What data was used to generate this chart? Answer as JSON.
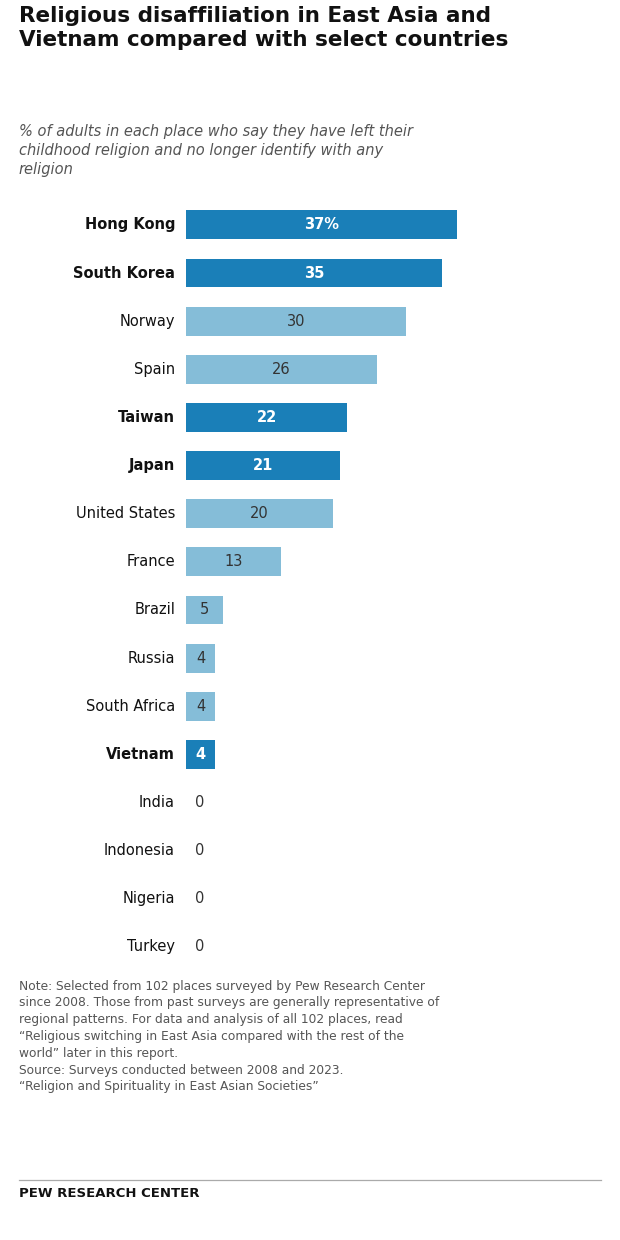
{
  "title": "Religious disaffiliation in East Asia and\nVietnam compared with select countries",
  "subtitle": "% of adults in each place who say they have left their\nchildhood religion and no longer identify with any\nreligion",
  "categories": [
    "Hong Kong",
    "South Korea",
    "Norway",
    "Spain",
    "Taiwan",
    "Japan",
    "United States",
    "France",
    "Brazil",
    "Russia",
    "South Africa",
    "Vietnam",
    "India",
    "Indonesia",
    "Nigeria",
    "Turkey"
  ],
  "values": [
    37,
    35,
    30,
    26,
    22,
    21,
    20,
    13,
    5,
    4,
    4,
    4,
    0,
    0,
    0,
    0
  ],
  "bold": [
    true,
    true,
    false,
    false,
    true,
    true,
    false,
    false,
    false,
    false,
    false,
    true,
    false,
    false,
    false,
    false
  ],
  "dark_blue": [
    true,
    true,
    false,
    false,
    true,
    true,
    false,
    false,
    false,
    false,
    false,
    true,
    false,
    false,
    false,
    false
  ],
  "label_suffix": [
    "%",
    "",
    "",
    "",
    "",
    "",
    "",
    "",
    "",
    "",
    "",
    "",
    "",
    "",
    "",
    ""
  ],
  "bar_color_dark": "#1a7fb8",
  "bar_color_light": "#85bdd8",
  "text_color_bar_dark": "#ffffff",
  "text_color_bar_light": "#333333",
  "note_text": "Note: Selected from 102 places surveyed by Pew Research Center\nsince 2008. Those from past surveys are generally representative of\nregional patterns. For data and analysis of all 102 places, read\n“Religious switching in East Asia compared with the rest of the\nworld” later in this report.\nSource: Surveys conducted between 2008 and 2023.\n“Religion and Spirituality in East Asian Societies”",
  "source_label": "PEW RESEARCH CENTER",
  "xlim": [
    0,
    55
  ]
}
